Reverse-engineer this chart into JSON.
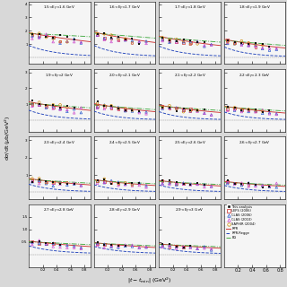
{
  "panels": [
    {
      "label": "1.5<E_\\gamma<1.6 GeV",
      "Emin": 1.5,
      "Emax": 1.6,
      "yticks": [
        1,
        2,
        3,
        4
      ],
      "yrange": [
        -0.5,
        4.2
      ]
    },
    {
      "label": "1.6<E_\\gamma<1.7 GeV",
      "Emin": 1.6,
      "Emax": 1.7,
      "yticks": [
        1,
        2,
        3,
        4
      ],
      "yrange": [
        -0.5,
        4.2
      ]
    },
    {
      "label": "1.7<E_\\gamma<1.8 GeV",
      "Emin": 1.7,
      "Emax": 1.8,
      "yticks": [
        1,
        2,
        3,
        4
      ],
      "yrange": [
        -0.5,
        4.2
      ]
    },
    {
      "label": "1.8<E_\\gamma<1.9 GeV",
      "Emin": 1.8,
      "Emax": 1.9,
      "yticks": [
        1,
        2,
        3,
        4
      ],
      "yrange": [
        -0.5,
        4.2
      ]
    },
    {
      "label": "1.9<E_\\gamma<2 GeV",
      "Emin": 1.9,
      "Emax": 2.0,
      "yticks": [
        1,
        2,
        3
      ],
      "yrange": [
        -0.7,
        3.2
      ]
    },
    {
      "label": "2<E_\\gamma<2.1 GeV",
      "Emin": 2.0,
      "Emax": 2.1,
      "yticks": [
        1,
        2,
        3
      ],
      "yrange": [
        -0.7,
        3.2
      ]
    },
    {
      "label": "2.1<E_\\gamma<2.2 GeV",
      "Emin": 2.1,
      "Emax": 2.2,
      "yticks": [
        1,
        2,
        3
      ],
      "yrange": [
        -0.7,
        3.2
      ]
    },
    {
      "label": "2.2<E_\\gamma<2.3 GeV",
      "Emin": 2.2,
      "Emax": 2.3,
      "yticks": [
        1,
        2,
        3
      ],
      "yrange": [
        -0.7,
        3.2
      ]
    },
    {
      "label": "2.3<E_\\gamma<2.4 GeV",
      "Emin": 2.3,
      "Emax": 2.4,
      "yticks": [
        1,
        2,
        3
      ],
      "yrange": [
        -0.4,
        3.2
      ]
    },
    {
      "label": "2.4<E_\\gamma<2.5 GeV",
      "Emin": 2.4,
      "Emax": 2.5,
      "yticks": [
        1,
        2,
        3
      ],
      "yrange": [
        -0.4,
        3.2
      ]
    },
    {
      "label": "2.5<E_\\gamma<2.6 GeV",
      "Emin": 2.5,
      "Emax": 2.6,
      "yticks": [
        1,
        2,
        3
      ],
      "yrange": [
        -0.4,
        3.2
      ]
    },
    {
      "label": "2.6<E_\\gamma<2.7 GeV",
      "Emin": 2.6,
      "Emax": 2.7,
      "yticks": [
        1,
        2,
        3
      ],
      "yrange": [
        -0.4,
        3.2
      ]
    },
    {
      "label": "2.7<E_\\gamma<2.8 GeV",
      "Emin": 2.7,
      "Emax": 2.8,
      "yticks": [
        0.5,
        1.0,
        1.5
      ],
      "yrange": [
        -0.5,
        2.0
      ]
    },
    {
      "label": "2.8<E_\\gamma<2.9 GeV",
      "Emin": 2.8,
      "Emax": 2.9,
      "yticks": [
        0.5,
        1.0,
        1.5
      ],
      "yrange": [
        -0.5,
        2.0
      ]
    },
    {
      "label": "2.9<E_\\gamma<3 GeV",
      "Emin": 2.9,
      "Emax": 3.0,
      "yticks": [
        0.5,
        1.0,
        1.5
      ],
      "yrange": [
        -0.5,
        2.0
      ]
    }
  ],
  "colors": {
    "this": "#111111",
    "leps": "#cc2222",
    "clas06": "#2255cc",
    "clas10": "#cc44cc",
    "saphir": "#cc8800",
    "rpr": "#cc3333",
    "rpr_regge": "#2244bb",
    "bg": "#44aa44"
  },
  "bg_color": "#d8d8d8",
  "panel_bg": "#f5f5f5"
}
